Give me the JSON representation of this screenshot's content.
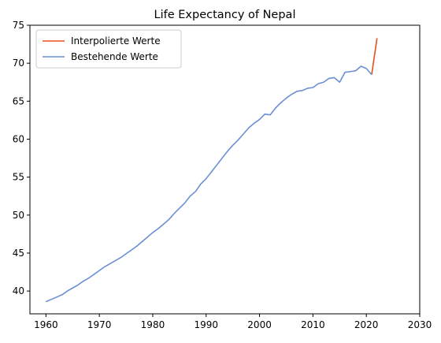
{
  "chart_data": {
    "type": "line",
    "title": "Life Expectancy of Nepal",
    "xlabel": "",
    "ylabel": "",
    "xlim": [
      1957,
      2030
    ],
    "ylim": [
      37,
      75
    ],
    "xticks": [
      1960,
      1970,
      1980,
      1990,
      2000,
      2010,
      2020,
      2030
    ],
    "yticks": [
      40,
      45,
      50,
      55,
      60,
      65,
      70,
      75
    ],
    "grid": false,
    "legend_position": "upper-left",
    "series": [
      {
        "name": "Interpolierte Werte",
        "color": "#e8501d",
        "x": [
          2021,
          2022
        ],
        "y": [
          68.5,
          73.3
        ]
      },
      {
        "name": "Bestehende Werte",
        "color": "#6b8fd6",
        "x": [
          1960,
          1961,
          1962,
          1963,
          1964,
          1965,
          1966,
          1967,
          1968,
          1969,
          1970,
          1971,
          1972,
          1973,
          1974,
          1975,
          1976,
          1977,
          1978,
          1979,
          1980,
          1981,
          1982,
          1983,
          1984,
          1985,
          1986,
          1987,
          1988,
          1989,
          1990,
          1991,
          1992,
          1993,
          1994,
          1995,
          1996,
          1997,
          1998,
          1999,
          2000,
          2001,
          2002,
          2003,
          2004,
          2005,
          2006,
          2007,
          2008,
          2009,
          2010,
          2011,
          2012,
          2013,
          2014,
          2015,
          2016,
          2017,
          2018,
          2019,
          2020,
          2021
        ],
        "y": [
          38.6,
          38.9,
          39.2,
          39.5,
          40.0,
          40.4,
          40.8,
          41.3,
          41.7,
          42.2,
          42.7,
          43.2,
          43.6,
          44.0,
          44.4,
          44.9,
          45.4,
          45.9,
          46.5,
          47.1,
          47.7,
          48.2,
          48.8,
          49.4,
          50.2,
          50.9,
          51.6,
          52.5,
          53.1,
          54.1,
          54.8,
          55.7,
          56.6,
          57.5,
          58.4,
          59.2,
          59.9,
          60.7,
          61.5,
          62.1,
          62.6,
          63.3,
          63.2,
          64.1,
          64.8,
          65.4,
          65.9,
          66.3,
          66.4,
          66.7,
          66.8,
          67.3,
          67.5,
          68.0,
          68.1,
          67.5,
          68.8,
          68.9,
          69.0,
          69.6,
          69.3,
          68.5
        ]
      }
    ]
  }
}
